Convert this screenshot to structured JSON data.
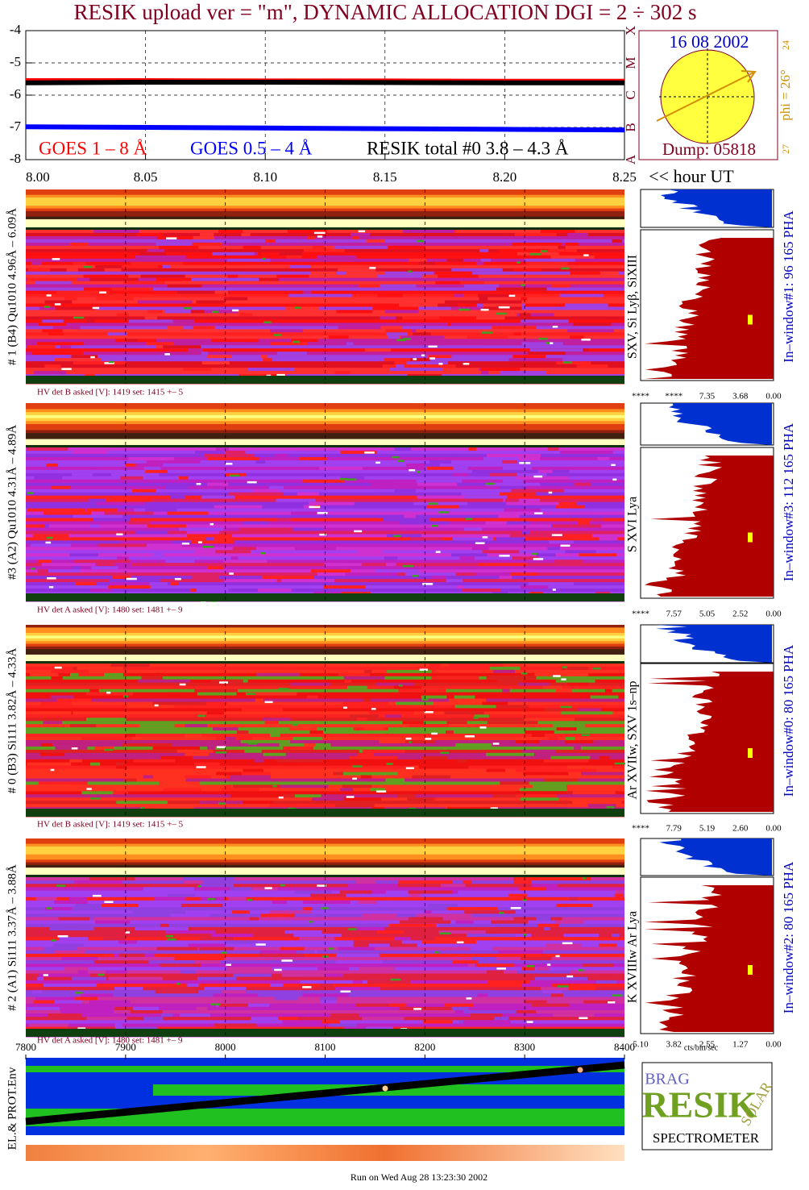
{
  "title": "RESIK upload ver = \"m\", DYNAMIC ALLOCATION  DGI =   2 ÷ 302 s",
  "chart_data": {
    "type": "line",
    "xlim": [
      8.0,
      8.25
    ],
    "xticks": [
      {
        "value": 8.0,
        "label": "8.00"
      },
      8.05,
      {
        "value": 8.1,
        "label": "8.10"
      },
      8.15,
      {
        "value": 8.2,
        "label": "8.20"
      },
      8.25
    ],
    "x_axis_label": "<< hour UT",
    "ylim": [
      -8,
      -4
    ],
    "yticks": [
      -4,
      -5,
      -6,
      -7,
      -8
    ],
    "grid": true,
    "class_labels": [
      "X",
      "M",
      "C",
      "B",
      "A"
    ],
    "series": [
      {
        "name": "GOES 1 – 8 Å",
        "color": "#ff0000",
        "x": [
          8.0,
          8.05,
          8.1,
          8.15,
          8.2,
          8.25
        ],
        "values": [
          -5.55,
          -5.55,
          -5.56,
          -5.56,
          -5.57,
          -5.57
        ]
      },
      {
        "name": "GOES 0.5 – 4 Å",
        "color": "#0000ff",
        "x": [
          8.0,
          8.05,
          8.1,
          8.15,
          8.2,
          8.25
        ],
        "values": [
          -6.98,
          -7.0,
          -7.02,
          -7.04,
          -7.06,
          -7.08
        ]
      },
      {
        "name": "RESIK total #0  3.8 – 4.3 Å",
        "color": "#000000",
        "x": [
          8.0,
          8.05,
          8.1,
          8.15,
          8.2,
          8.25
        ],
        "values": [
          -5.62,
          -5.6,
          -5.6,
          -5.61,
          -5.62,
          -5.62
        ]
      }
    ]
  },
  "sun": {
    "date": "16 08 2002",
    "dump": "Dump: 05818",
    "phi": "phi = 26°",
    "top": "24",
    "bottom": "27"
  },
  "panels": [
    {
      "label": "# 1 (B4) Qu1010 4.96Å – 6.09Å",
      "lines": "SXV, Si Lyβ, SiXIII",
      "window": "In–window#1:   96 165  PHA",
      "hv": "HV det B asked [V]:  1419 set:  1415 +–   5",
      "scale": [
        "****",
        "****",
        "7.35",
        "3.68",
        "0.00"
      ]
    },
    {
      "label": "#3 (A2) Qu1010  4.31Å – 4.89Å",
      "lines": "S XVI Lya",
      "window": "In–window#3:  112 165  PHA",
      "hv": "HV det A asked [V]:  1480 set:  1481 +–   9",
      "scale": [
        "****",
        "7.57",
        "5.05",
        "2.52",
        "0.00"
      ]
    },
    {
      "label": "# 0 (B3) Si111  3.82Å – 4.33Å",
      "lines": "Ar XVIIw, SXV 1s–np",
      "window": "In–window#0:   80 165  PHA",
      "hv": "HV det B asked [V]:  1419 set:  1415 +–   5",
      "scale": [
        "****",
        "7.79",
        "5.19",
        "2.60",
        "0.00"
      ]
    },
    {
      "label": "# 2 (A1) Si111  3.37Å – 3.88Å",
      "lines": "K XVIIIw  Ar Lya",
      "window": "In–window#2:   80 165  PHA",
      "hv": "HV det A asked [V]:  1480 set:  1481 +–   9",
      "scale": [
        "5.10",
        "3.82",
        "2.55",
        "1.27",
        "0.00"
      ]
    }
  ],
  "hist_unit": "cts/bin/sec",
  "env": {
    "label": "EL.& PROT.Env",
    "xlim": [
      7800,
      8400
    ],
    "xticks": [
      7800,
      7900,
      8000,
      8100,
      8200,
      8300,
      8400
    ]
  },
  "logo": {
    "words": [
      "BRAG",
      "RESIK",
      "SOLAR",
      "SPECTROMETER"
    ]
  },
  "footer": "Run on Wed Aug 28 13:23:30 2002"
}
